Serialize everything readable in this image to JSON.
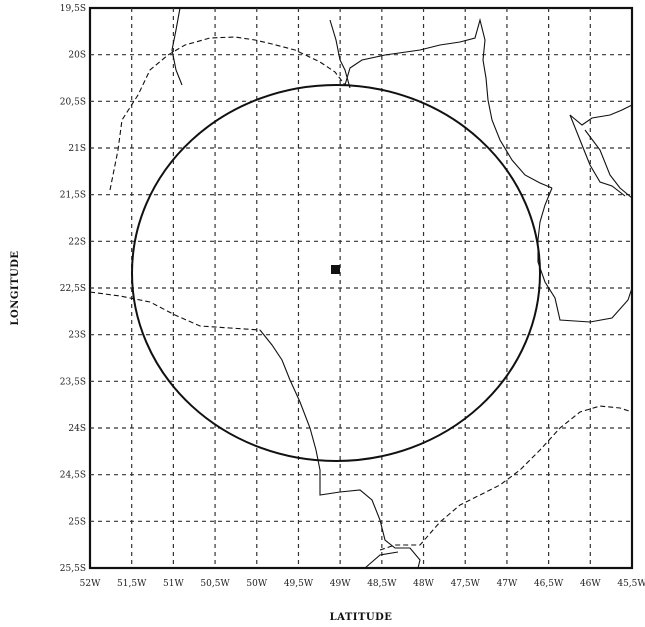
{
  "map": {
    "x_axis_title": "LATITUDE",
    "y_axis_title": "LONGITUDE",
    "x_ticks": [
      "52W",
      "51,5W",
      "51W",
      "50,5W",
      "50W",
      "49,5W",
      "49W",
      "48,5W",
      "48W",
      "47,5W",
      "47W",
      "46,5W",
      "46W",
      "45,5W"
    ],
    "y_ticks": [
      "19,5S",
      "20S",
      "20,5S",
      "21S",
      "21,5S",
      "22S",
      "22,5S",
      "23S",
      "23,5S",
      "24S",
      "24,5S",
      "25S",
      "25,5S"
    ],
    "lon_range": [
      -52,
      -45.5
    ],
    "lat_range": [
      -19.5,
      -25.5
    ],
    "grid": "dashed",
    "center_marker": {
      "lon": -49.1,
      "lat": -22.35
    },
    "range_circle_center": {
      "lon": -49.1,
      "lat": -22.35
    },
    "colors": {
      "ink": "#111111",
      "grid": "#333333",
      "background": "#ffffff"
    }
  }
}
